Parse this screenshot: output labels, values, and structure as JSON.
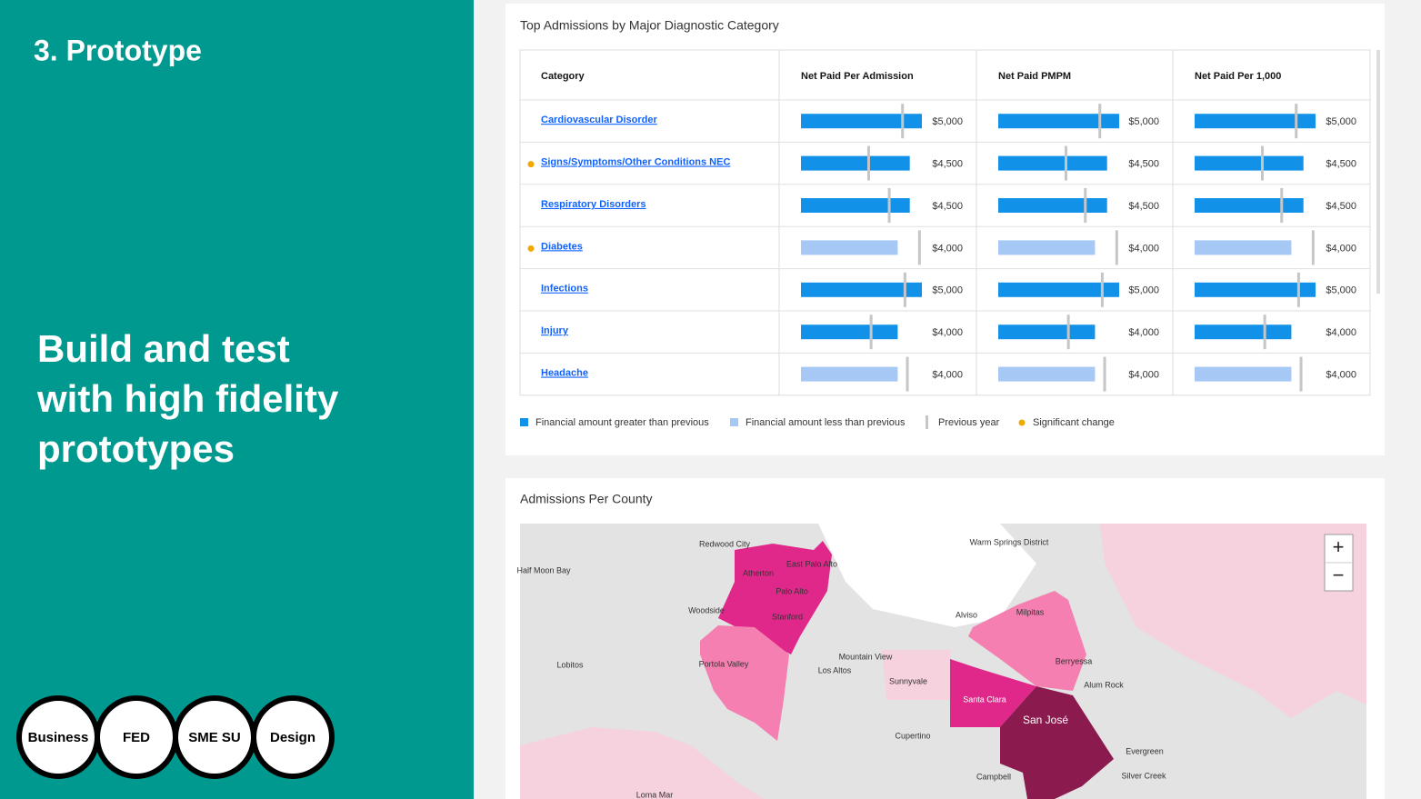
{
  "slide": {
    "step": "3. Prototype",
    "heading_lines": [
      "Build and test",
      "with high fidelity",
      "prototypes"
    ],
    "roles": [
      "Business",
      "FED",
      "SME SU",
      "Design"
    ]
  },
  "table_card": {
    "title": "Top Admissions by Major Diagnostic Category",
    "columns": [
      "Category",
      "Net Paid Per Admission",
      "Net Paid PMPM",
      "Net Paid Per 1,000"
    ],
    "rows": [
      {
        "category": "Cardiovascular Disorder",
        "significant": false,
        "trend": "greater",
        "cells": [
          {
            "value": 5000,
            "label": "$5,000",
            "previous": 4200
          },
          {
            "value": 5000,
            "label": "$5,000",
            "previous": 4200
          },
          {
            "value": 5000,
            "label": "$5,000",
            "previous": 4200
          }
        ]
      },
      {
        "category": "Signs/Symptoms/Other Conditions NEC",
        "significant": true,
        "trend": "greater",
        "cells": [
          {
            "value": 4500,
            "label": "$4,500",
            "previous": 2800
          },
          {
            "value": 4500,
            "label": "$4,500",
            "previous": 2800
          },
          {
            "value": 4500,
            "label": "$4,500",
            "previous": 2800
          }
        ]
      },
      {
        "category": "Respiratory Disorders",
        "significant": false,
        "trend": "greater",
        "cells": [
          {
            "value": 4500,
            "label": "$4,500",
            "previous": 3650
          },
          {
            "value": 4500,
            "label": "$4,500",
            "previous": 3600
          },
          {
            "value": 4500,
            "label": "$4,500",
            "previous": 3600
          }
        ]
      },
      {
        "category": "Diabetes",
        "significant": true,
        "trend": "less",
        "cells": [
          {
            "value": 4000,
            "label": "$4,000",
            "previous": 4900
          },
          {
            "value": 4000,
            "label": "$4,000",
            "previous": 4900
          },
          {
            "value": 4000,
            "label": "$4,000",
            "previous": 4900
          }
        ]
      },
      {
        "category": "Infections",
        "significant": false,
        "trend": "greater",
        "cells": [
          {
            "value": 5000,
            "label": "$5,000",
            "previous": 4300
          },
          {
            "value": 5000,
            "label": "$5,000",
            "previous": 4300
          },
          {
            "value": 5000,
            "label": "$5,000",
            "previous": 4300
          }
        ]
      },
      {
        "category": "Injury",
        "significant": false,
        "trend": "greater",
        "cells": [
          {
            "value": 4000,
            "label": "$4,000",
            "previous": 2900
          },
          {
            "value": 4000,
            "label": "$4,000",
            "previous": 2900
          },
          {
            "value": 4000,
            "label": "$4,000",
            "previous": 2900
          }
        ]
      },
      {
        "category": "Headache",
        "significant": false,
        "trend": "less",
        "cells": [
          {
            "value": 4000,
            "label": "$4,000",
            "previous": 4400
          },
          {
            "value": 4000,
            "label": "$4,000",
            "previous": 4400
          },
          {
            "value": 4000,
            "label": "$4,000",
            "previous": 4400
          }
        ]
      }
    ],
    "legend": {
      "greater": {
        "label": "Financial amount greater than previous",
        "color": "#1192e8"
      },
      "less": {
        "label": "Financial amount less than previous",
        "color": "#a6c8f5"
      },
      "previous": {
        "label": "Previous year",
        "color": "#c6c6c6"
      },
      "significant": {
        "label": "Significant change",
        "color": "#f1a800"
      }
    }
  },
  "map_card": {
    "title": "Admissions Per County",
    "zoom_in": "+",
    "zoom_out": "−",
    "places": [
      "Redwood City",
      "Half Moon Bay",
      "Atherton",
      "East Palo Alto",
      "Palo Alto",
      "Woodside",
      "Stanford",
      "Portola Valley",
      "Mountain View",
      "Los Altos",
      "Sunnyvale",
      "Milpitas",
      "Berryessa",
      "Alum Rock",
      "Santa Clara",
      "San José",
      "Cupertino",
      "Campbell",
      "Evergreen",
      "Silver Creek",
      "Lobitos",
      "Warm Springs District",
      "Alviso",
      "Loma Mar"
    ]
  }
}
